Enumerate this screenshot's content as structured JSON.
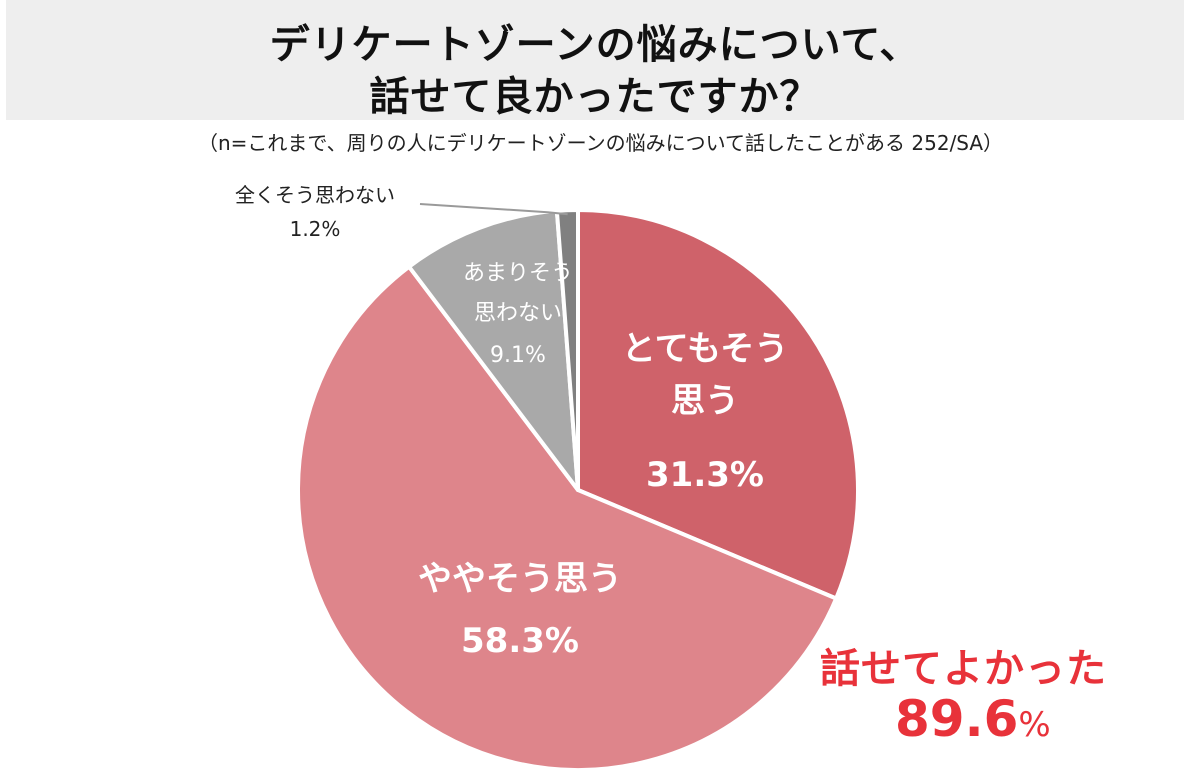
{
  "title": {
    "line1": "デリケートゾーンの悩みについて、",
    "line2": "話せて良かったですか？"
  },
  "subtitle": "（n=これまで、周りの人にデリケートゾーンの悩みについて話したことがある 252/SA）",
  "chart_data": {
    "type": "pie",
    "start_angle_deg": 0,
    "direction": "clockwise",
    "slices": [
      {
        "label_lines": [
          "とても",
          "そう",
          "思う"
        ],
        "label": "とてもそう思う",
        "value": 31.3,
        "value_text": "31.3%",
        "color": "#cf626a"
      },
      {
        "label_lines": [
          "ややそう思う"
        ],
        "label": "ややそう思う",
        "value": 58.3,
        "value_text": "58.3%",
        "color": "#de858b"
      },
      {
        "label_lines": [
          "あまりそう",
          "思わない"
        ],
        "label": "あまりそう思わない",
        "value": 9.1,
        "value_text": "9.1%",
        "color": "#a9a9a9"
      },
      {
        "label_lines": [
          "全くそう思わない"
        ],
        "label": "全くそう思わない",
        "value": 1.2,
        "value_text": "1.2%",
        "color": "#808080"
      }
    ]
  },
  "summary": {
    "label": "話せてよかった",
    "value": "89.6",
    "unit": "%"
  }
}
